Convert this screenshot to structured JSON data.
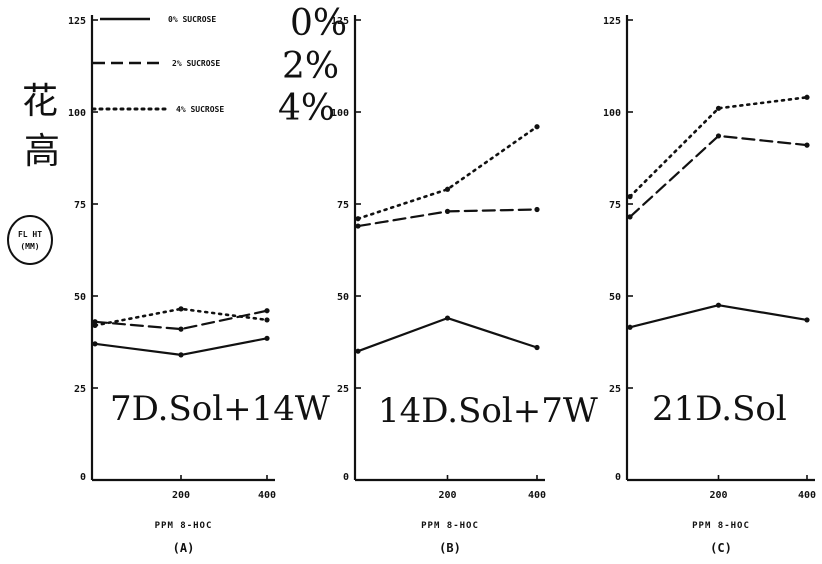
{
  "chart_data": [
    {
      "type": "line",
      "panel_label": "(A)",
      "annotation": "7D.Sol+14W",
      "xlabel": "PPM 8-HOC",
      "x_ticks": [
        "200",
        "400"
      ],
      "y_ticks": [
        "0",
        "25",
        "50",
        "75",
        "100",
        "125"
      ],
      "ylim": [
        0,
        125
      ],
      "x": [
        0,
        200,
        400
      ],
      "xlim": [
        0,
        400
      ],
      "series": [
        {
          "name": "0% SUCROSE",
          "style": "solid",
          "values": [
            37,
            34,
            38.5
          ]
        },
        {
          "name": "2% SUCROSE",
          "style": "dashed",
          "values": [
            43,
            41,
            46
          ]
        },
        {
          "name": "4% SUCROSE",
          "style": "dotted",
          "values": [
            42,
            46.5,
            43.5
          ]
        }
      ]
    },
    {
      "type": "line",
      "panel_label": "(B)",
      "annotation": "14D.Sol+7W",
      "xlabel": "PPM 8-HOC",
      "x_ticks": [
        "200",
        "400"
      ],
      "y_ticks": [
        "0",
        "25",
        "50",
        "75",
        "100",
        "125"
      ],
      "ylim": [
        0,
        125
      ],
      "x": [
        0,
        200,
        400
      ],
      "xlim": [
        0,
        400
      ],
      "series": [
        {
          "name": "0% SUCROSE",
          "style": "solid",
          "values": [
            35,
            44,
            36
          ]
        },
        {
          "name": "2% SUCROSE",
          "style": "dashed",
          "values": [
            69,
            73,
            73.5
          ]
        },
        {
          "name": "4% SUCROSE",
          "style": "dotted",
          "values": [
            71,
            79,
            96
          ]
        }
      ]
    },
    {
      "type": "line",
      "panel_label": "(C)",
      "annotation": "21D.Sol",
      "xlabel": "PPM 8-HOC",
      "x_ticks": [
        "200",
        "400"
      ],
      "y_ticks": [
        "0",
        "25",
        "50",
        "75",
        "100",
        "125"
      ],
      "ylim": [
        0,
        125
      ],
      "x": [
        0,
        200,
        400
      ],
      "xlim": [
        0,
        400
      ],
      "series": [
        {
          "name": "0% SUCROSE",
          "style": "solid",
          "values": [
            41.5,
            47.5,
            43.5
          ]
        },
        {
          "name": "2% SUCROSE",
          "style": "dashed",
          "values": [
            71.5,
            93.5,
            91
          ]
        },
        {
          "name": "4% SUCROSE",
          "style": "dotted",
          "values": [
            77,
            101,
            104
          ]
        }
      ]
    }
  ],
  "legend": [
    {
      "text": "0% SUCROSE",
      "hand": "0%",
      "style": "solid"
    },
    {
      "text": "2% SUCROSE",
      "hand": "2%",
      "style": "dashed"
    },
    {
      "text": "4% SUCROSE",
      "hand": "4%",
      "style": "dotted"
    }
  ],
  "ylabel_lines": [
    "FL HT",
    "(MM)"
  ],
  "ylabel_cjk": [
    "花",
    "高"
  ]
}
